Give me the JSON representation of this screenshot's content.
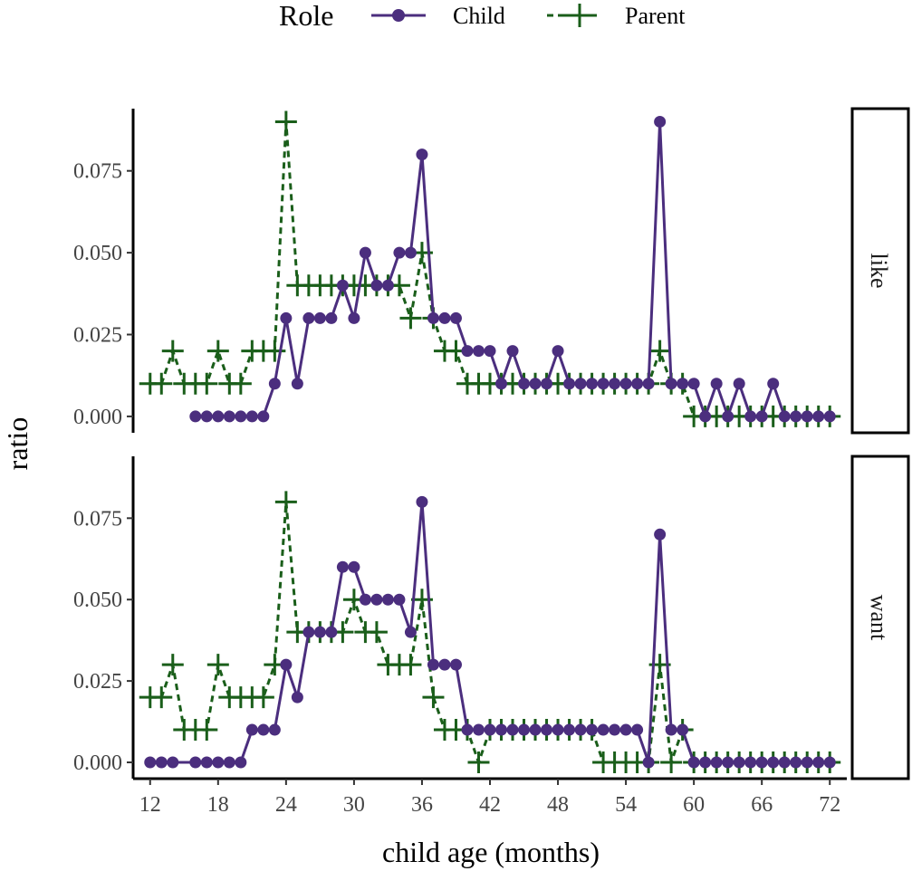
{
  "chart_data": {
    "type": "line",
    "xlabel": "child age (months)",
    "ylabel": "ratio",
    "xlim": [
      10.5,
      73.5
    ],
    "ylim": [
      -0.005,
      0.094
    ],
    "x_ticks": [
      12,
      18,
      24,
      30,
      36,
      42,
      48,
      54,
      60,
      66,
      72
    ],
    "y_ticks": [
      0.0,
      0.025,
      0.05,
      0.075
    ],
    "y_tick_labels": [
      "0.000",
      "0.025",
      "0.050",
      "0.075"
    ],
    "legend": {
      "title": "Role",
      "position": "top",
      "entries": [
        {
          "label": "Child",
          "color": "#4b2e7e",
          "marker": "circle",
          "line": "solid"
        },
        {
          "label": "Parent",
          "color": "#1a5e1a",
          "marker": "plus",
          "line": "dashed"
        }
      ]
    },
    "facets": [
      {
        "label": "like",
        "series": [
          {
            "name": "Child",
            "x": [
              16,
              17,
              18,
              19,
              20,
              21,
              22,
              23,
              24,
              25,
              26,
              27,
              28,
              29,
              30,
              31,
              32,
              33,
              34,
              35,
              36,
              37,
              38,
              39,
              40,
              41,
              42,
              43,
              44,
              45,
              46,
              47,
              48,
              49,
              50,
              51,
              52,
              53,
              54,
              55,
              56,
              57,
              58,
              59,
              60,
              61,
              62,
              63,
              64,
              65,
              66,
              67,
              68,
              69,
              70,
              71,
              72
            ],
            "y": [
              0,
              0,
              0,
              0,
              0,
              0,
              0,
              0.01,
              0.03,
              0.01,
              0.03,
              0.03,
              0.03,
              0.04,
              0.03,
              0.05,
              0.04,
              0.04,
              0.05,
              0.05,
              0.08,
              0.03,
              0.03,
              0.03,
              0.02,
              0.02,
              0.02,
              0.01,
              0.02,
              0.01,
              0.01,
              0.01,
              0.02,
              0.01,
              0.01,
              0.01,
              0.01,
              0.01,
              0.01,
              0.01,
              0.01,
              0.09,
              0.01,
              0.01,
              0.01,
              0,
              0.01,
              0,
              0.01,
              0,
              0,
              0.01,
              0,
              0,
              0,
              0,
              0
            ]
          },
          {
            "name": "Parent",
            "x": [
              12,
              13,
              14,
              15,
              16,
              17,
              18,
              19,
              20,
              21,
              22,
              23,
              24,
              25,
              26,
              27,
              28,
              29,
              30,
              31,
              32,
              33,
              34,
              35,
              36,
              37,
              38,
              39,
              40,
              41,
              42,
              43,
              44,
              45,
              46,
              47,
              48,
              49,
              50,
              51,
              52,
              53,
              54,
              55,
              56,
              57,
              58,
              59,
              60,
              61,
              62,
              63,
              64,
              65,
              66,
              67,
              68,
              69,
              70,
              71,
              72
            ],
            "y": [
              0.01,
              0.01,
              0.02,
              0.01,
              0.01,
              0.01,
              0.02,
              0.01,
              0.01,
              0.02,
              0.02,
              0.02,
              0.09,
              0.04,
              0.04,
              0.04,
              0.04,
              0.04,
              0.04,
              0.04,
              0.04,
              0.04,
              0.04,
              0.03,
              0.05,
              0.03,
              0.02,
              0.02,
              0.01,
              0.01,
              0.01,
              0.01,
              0.01,
              0.01,
              0.01,
              0.01,
              0.01,
              0.01,
              0.01,
              0.01,
              0.01,
              0.01,
              0.01,
              0.01,
              0.01,
              0.02,
              0.01,
              0.01,
              0,
              0,
              0,
              0,
              0,
              0,
              0,
              0,
              0,
              0,
              0,
              0,
              0
            ]
          }
        ]
      },
      {
        "label": "want",
        "series": [
          {
            "name": "Child",
            "x": [
              12,
              13,
              14,
              16,
              17,
              18,
              19,
              20,
              21,
              22,
              23,
              24,
              25,
              26,
              27,
              28,
              29,
              30,
              31,
              32,
              33,
              34,
              35,
              36,
              37,
              38,
              39,
              40,
              41,
              42,
              43,
              44,
              45,
              46,
              47,
              48,
              49,
              50,
              51,
              52,
              53,
              54,
              55,
              56,
              57,
              58,
              59,
              60,
              61,
              62,
              63,
              64,
              65,
              66,
              67,
              68,
              69,
              70,
              71,
              72
            ],
            "y": [
              0,
              0,
              0,
              0,
              0,
              0,
              0,
              0,
              0.01,
              0.01,
              0.01,
              0.03,
              0.02,
              0.04,
              0.04,
              0.04,
              0.06,
              0.06,
              0.05,
              0.05,
              0.05,
              0.05,
              0.04,
              0.08,
              0.03,
              0.03,
              0.03,
              0.01,
              0.01,
              0.01,
              0.01,
              0.01,
              0.01,
              0.01,
              0.01,
              0.01,
              0.01,
              0.01,
              0.01,
              0.01,
              0.01,
              0.01,
              0.01,
              0,
              0.07,
              0.01,
              0.01,
              0,
              0,
              0,
              0,
              0,
              0,
              0,
              0,
              0,
              0,
              0,
              0,
              0
            ]
          },
          {
            "name": "Parent",
            "x": [
              12,
              13,
              14,
              15,
              16,
              17,
              18,
              19,
              20,
              21,
              22,
              23,
              24,
              25,
              26,
              27,
              28,
              29,
              30,
              31,
              32,
              33,
              34,
              35,
              36,
              37,
              38,
              39,
              40,
              41,
              42,
              43,
              44,
              45,
              46,
              47,
              48,
              49,
              50,
              51,
              52,
              53,
              54,
              55,
              56,
              57,
              58,
              59,
              60,
              61,
              62,
              63,
              64,
              65,
              66,
              67,
              68,
              69,
              70,
              71,
              72
            ],
            "y": [
              0.02,
              0.02,
              0.03,
              0.01,
              0.01,
              0.01,
              0.03,
              0.02,
              0.02,
              0.02,
              0.02,
              0.03,
              0.08,
              0.04,
              0.04,
              0.04,
              0.04,
              0.04,
              0.05,
              0.04,
              0.04,
              0.03,
              0.03,
              0.03,
              0.05,
              0.02,
              0.01,
              0.01,
              0.01,
              0,
              0.01,
              0.01,
              0.01,
              0.01,
              0.01,
              0.01,
              0.01,
              0.01,
              0.01,
              0.01,
              0,
              0,
              0,
              0,
              0,
              0.03,
              0,
              0.01,
              0,
              0,
              0,
              0,
              0,
              0,
              0,
              0,
              0,
              0,
              0,
              0,
              0
            ]
          }
        ]
      }
    ]
  }
}
